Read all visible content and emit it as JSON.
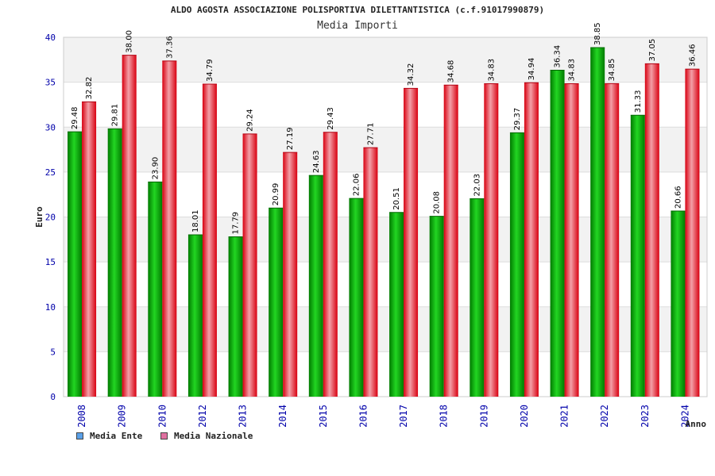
{
  "chart_data": {
    "type": "bar",
    "title": "ALDO AGOSTA ASSOCIAZIONE POLISPORTIVA DILETTANTISTICA (c.f.91017990879)",
    "subtitle": "Media Importi",
    "xlabel": "Anno",
    "ylabel": "Euro",
    "ylim": [
      0,
      40
    ],
    "yticks": [
      "0",
      "5",
      "10",
      "15",
      "20",
      "25",
      "30",
      "35",
      "40"
    ],
    "categories": [
      "2008",
      "2009",
      "2010",
      "2012",
      "2013",
      "2014",
      "2015",
      "2016",
      "2017",
      "2018",
      "2019",
      "2020",
      "2021",
      "2022",
      "2023",
      "2024"
    ],
    "series": [
      {
        "name": "Media Ente",
        "color": "#0aa80a",
        "legend_color": "#5aa0e8",
        "values": [
          29.48,
          29.81,
          23.9,
          18.01,
          17.79,
          20.99,
          24.63,
          22.06,
          20.51,
          20.08,
          22.03,
          29.37,
          36.34,
          38.85,
          31.33,
          20.66
        ],
        "labels": [
          "29.48",
          "29.81",
          "23.90",
          "18.01",
          "17.79",
          "20.99",
          "24.63",
          "22.06",
          "20.51",
          "20.08",
          "22.03",
          "29.37",
          "36.34",
          "38.85",
          "31.33",
          "20.66"
        ]
      },
      {
        "name": "Media Nazionale",
        "color": "#e8202a",
        "legend_color": "#e070a0",
        "values": [
          32.82,
          38.0,
          37.36,
          34.79,
          29.24,
          27.19,
          29.43,
          27.71,
          34.32,
          34.68,
          34.83,
          34.94,
          34.83,
          34.85,
          37.05,
          36.46
        ],
        "labels": [
          "32.82",
          "38.00",
          "37.36",
          "34.79",
          "29.24",
          "27.19",
          "29.43",
          "27.71",
          "34.32",
          "34.68",
          "34.83",
          "34.94",
          "34.83",
          "34.85",
          "37.05",
          "36.46"
        ]
      }
    ],
    "grid": true,
    "legend_position": "bottom-left"
  }
}
